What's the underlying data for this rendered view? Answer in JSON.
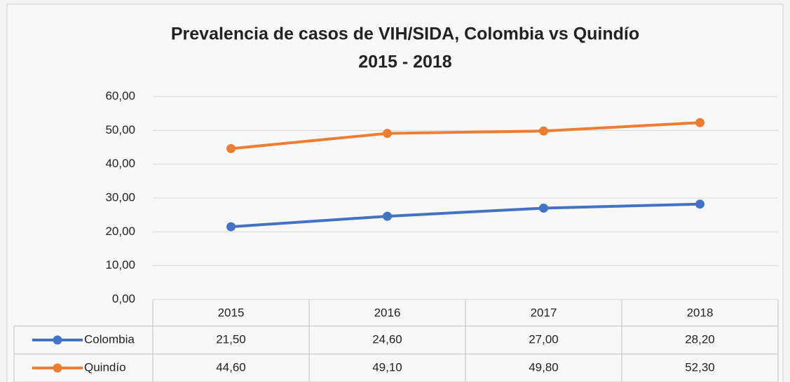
{
  "chart_data": {
    "type": "line",
    "title": [
      "Prevalencia de casos de VIH/SIDA, Colombia vs Quindío",
      "2015 - 2018"
    ],
    "categories": [
      "2015",
      "2016",
      "2017",
      "2018"
    ],
    "series": [
      {
        "name": "Colombia",
        "color": "#4472c4",
        "values": [
          21.5,
          24.6,
          27.0,
          28.2
        ],
        "value_labels": [
          "21,50",
          "24,60",
          "27,00",
          "28,20"
        ]
      },
      {
        "name": "Quindío",
        "color": "#ed7d31",
        "values": [
          44.6,
          49.1,
          49.8,
          52.3
        ],
        "value_labels": [
          "44,60",
          "49,10",
          "49,80",
          "52,30"
        ]
      }
    ],
    "ylim": [
      0,
      60
    ],
    "yticks": [
      {
        "value": 0,
        "label": "0,00"
      },
      {
        "value": 10,
        "label": "10,00"
      },
      {
        "value": 20,
        "label": "20,00"
      },
      {
        "value": 30,
        "label": "30,00"
      },
      {
        "value": 40,
        "label": "40,00"
      },
      {
        "value": 50,
        "label": "50,00"
      },
      {
        "value": 60,
        "label": "60,00"
      }
    ],
    "grid": true
  }
}
